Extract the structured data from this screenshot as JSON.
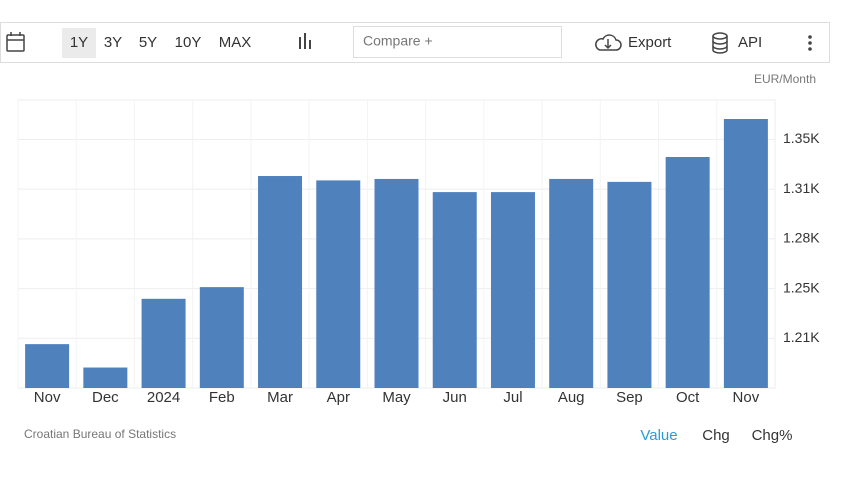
{
  "toolbar": {
    "ranges": [
      "1Y",
      "3Y",
      "5Y",
      "10Y",
      "MAX"
    ],
    "compare": "Compare +",
    "export": "Export",
    "api": "API"
  },
  "chart_data": {
    "type": "bar",
    "unit": "EUR/Month",
    "color": "#4f81bd",
    "categories": [
      "Nov",
      "Dec",
      "2024",
      "Feb",
      "Mar",
      "Apr",
      "May",
      "Jun",
      "Jul",
      "Aug",
      "Sep",
      "Oct",
      "Nov"
    ],
    "values": [
      1208,
      1192,
      1239,
      1247,
      1323,
      1320,
      1321,
      1312,
      1312,
      1321,
      1319,
      1336,
      1362
    ],
    "ylim": [
      1178,
      1375
    ],
    "yticks": [
      {
        "value": 1212,
        "label": "1.21K"
      },
      {
        "value": 1246,
        "label": "1.25K"
      },
      {
        "value": 1280,
        "label": "1.28K"
      },
      {
        "value": 1314,
        "label": "1.31K"
      },
      {
        "value": 1348,
        "label": "1.35K"
      }
    ],
    "grid": true
  },
  "footer": {
    "source": "Croatian Bureau of Statistics",
    "tabs": [
      "Value",
      "Chg",
      "Chg%"
    ]
  }
}
